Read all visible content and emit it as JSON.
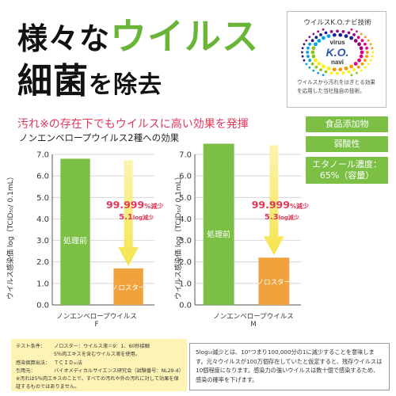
{
  "header": {
    "title_line1_part1": "様々な",
    "title_line1_part2": "ウイルス",
    "title_line2_part1": "細菌",
    "title_line2_part2": "を除去"
  },
  "logo": {
    "heading": "ウイルスK.O.ナビ技術",
    "word1": "virus",
    "word2": "K.O.",
    "word3": "navi",
    "description": "ウイルスから汚れをはぎとる効果を応用した当社独自の技術。"
  },
  "subtitle": {
    "main": "汚れ※の存在下でもウイルスに高い効果を発揮",
    "sub": "ノンエンベロープウイルス2種への効果"
  },
  "badges": [
    "食品添加物",
    "弱酸性",
    "エタノール濃度：",
    "65%（容量）"
  ],
  "chart_data": [
    {
      "type": "bar",
      "ylabel": "ウイルス感染価 log（TCID₅₀/ 0.1mL）",
      "xlabel": "ノンエンベロープウイルス",
      "subject": "F",
      "ylim": [
        0,
        7
      ],
      "yticks": [
        "0.0",
        "1.0",
        "2.0",
        "3.0",
        "4.0",
        "5.0",
        "6.0",
        "7.0"
      ],
      "categories": [
        "処理前",
        "ノロスター"
      ],
      "values": [
        6.8,
        1.7
      ],
      "colors": [
        "#7cbf45",
        "#f0a23c"
      ],
      "annotation_percent": "99.999",
      "annotation_percent_unit": "%減少",
      "annotation_log": "5.1",
      "annotation_log_unit": "log減少"
    },
    {
      "type": "bar",
      "ylabel": "ウイルス感染価 log（TCID₅₀/ 0.1mL）",
      "xlabel": "ノンエンベロープウイルス",
      "subject": "M",
      "ylim": [
        0,
        7
      ],
      "yticks": [
        "0.0",
        "1.0",
        "2.0",
        "3.0",
        "4.0",
        "5.0",
        "6.0",
        "7.0"
      ],
      "categories": [
        "処理前",
        "ノロスター"
      ],
      "values": [
        7.5,
        2.2
      ],
      "colors": [
        "#7cbf45",
        "#f0a23c"
      ],
      "annotation_percent": "99.999",
      "annotation_percent_unit": "%減少",
      "annotation_log": "5.3",
      "annotation_log_unit": "log減少"
    }
  ],
  "conditions": [
    {
      "key": "テスト条件：",
      "value": "ノロスター：ウイルス液＝9：1、60秒接触"
    },
    {
      "key": "",
      "value": "5％肉エキスを含むウイルス液を使用。"
    },
    {
      "key": "感染価算出法：",
      "value": "ＴＣＩＤ₅₀法"
    },
    {
      "key": "引用元：",
      "value": "バイオメディカルサイエンス研究会（試験番号：NL29-4）"
    }
  ],
  "conditions_note": "※汚れは5％肉エキスのことで、すべての汚れや外の汚れに対して効果を保証するものではありません。",
  "footnote": "5log₁₀減少とは、10⁵つまり100,000分の1に減少することを意味します。元々ウイルスが100万個存在していたと仮定すると、残存ウイルスは10個程度になります。感染力の強いウイルスは数十個で感染するため、感染の確率を下げます。",
  "colors": {
    "accent_green": "#7cbf45",
    "accent_red": "#e0385b",
    "bar_orange": "#f0a23c",
    "arrow_yellow": "#f6e44c",
    "note_yellow": "#fdf3b4"
  }
}
